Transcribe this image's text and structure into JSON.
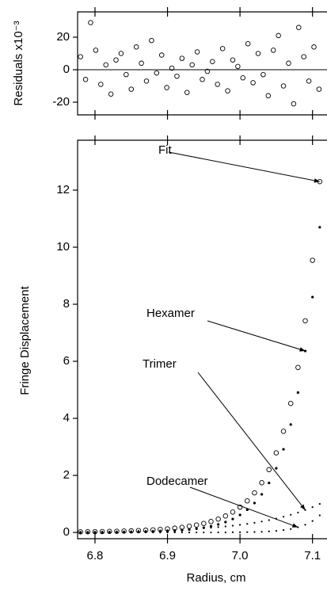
{
  "chart_data": [
    {
      "type": "scatter",
      "y_label": "Residuals x10⁻³",
      "xlim": [
        6.776,
        7.12
      ],
      "xticks": [
        6.8,
        6.9,
        7.0,
        7.1
      ],
      "ylim": [
        -27.8,
        35.6
      ],
      "yticks": [
        20,
        0,
        -20
      ],
      "reference_line": 0,
      "x": [
        6.78,
        6.787,
        6.794,
        6.801,
        6.808,
        6.815,
        6.822,
        6.829,
        6.836,
        6.843,
        6.85,
        6.857,
        6.864,
        6.871,
        6.878,
        6.885,
        6.892,
        6.899,
        6.906,
        6.913,
        6.92,
        6.927,
        6.934,
        6.941,
        6.948,
        6.955,
        6.962,
        6.969,
        6.976,
        6.983,
        6.99,
        6.997,
        7.004,
        7.011,
        7.018,
        7.025,
        7.032,
        7.039,
        7.046,
        7.053,
        7.06,
        7.067,
        7.074,
        7.081,
        7.088,
        7.095,
        7.102,
        7.109
      ],
      "series": [
        {
          "marker": "circle-open",
          "color": "#000000",
          "values": [
            8,
            -6,
            29,
            12,
            -9,
            3,
            -15,
            6,
            10,
            -3,
            -12,
            14,
            4,
            -7,
            18,
            -2,
            9,
            -11,
            1,
            -4,
            7,
            -14,
            3,
            11,
            -6,
            -1,
            5,
            -9,
            13,
            -13,
            6,
            2,
            -5,
            16,
            -8,
            10,
            -3,
            -16,
            12,
            21,
            -10,
            4,
            -21,
            26,
            8,
            -7,
            14,
            -12
          ]
        }
      ]
    },
    {
      "type": "scatter",
      "x_label": "Radius, cm",
      "y_label": "Fringe Displacement",
      "xlim": [
        6.776,
        7.12
      ],
      "xticks": [
        {
          "value": 6.8,
          "label": "6.8"
        },
        {
          "value": 6.9,
          "label": "6.9"
        },
        {
          "value": 7.0,
          "label": "7.0"
        },
        {
          "value": 7.1,
          "label": "7.1"
        }
      ],
      "ylim": [
        -0.22,
        13.75
      ],
      "yticks": [
        0,
        2,
        4,
        6,
        8,
        10,
        12
      ],
      "x": [
        6.78,
        6.79,
        6.8,
        6.81,
        6.82,
        6.83,
        6.84,
        6.85,
        6.86,
        6.87,
        6.88,
        6.89,
        6.9,
        6.91,
        6.92,
        6.93,
        6.94,
        6.95,
        6.96,
        6.97,
        6.98,
        6.99,
        7.0,
        7.01,
        7.02,
        7.03,
        7.04,
        7.05,
        7.06,
        7.07,
        7.08,
        7.09,
        7.1,
        7.11
      ],
      "series": [
        {
          "name": "Fit",
          "marker": "circle-open",
          "color": "#000000",
          "values": [
            0.021,
            0.024,
            0.027,
            0.031,
            0.037,
            0.042,
            0.049,
            0.056,
            0.066,
            0.077,
            0.09,
            0.106,
            0.125,
            0.15,
            0.179,
            0.214,
            0.26,
            0.315,
            0.383,
            0.469,
            0.577,
            0.714,
            0.887,
            1.107,
            1.387,
            1.744,
            2.202,
            2.79,
            3.546,
            4.522,
            5.784,
            7.418,
            9.54,
            12.3
          ]
        },
        {
          "name": "Hexamer",
          "marker": "dot",
          "color": "#000000",
          "values": [
            0.002,
            0.003,
            0.003,
            0.004,
            0.006,
            0.007,
            0.01,
            0.012,
            0.016,
            0.021,
            0.027,
            0.035,
            0.045,
            0.059,
            0.077,
            0.099,
            0.129,
            0.167,
            0.217,
            0.281,
            0.364,
            0.472,
            0.613,
            0.795,
            1.031,
            1.337,
            1.734,
            2.249,
            2.916,
            3.782,
            4.905,
            6.361,
            8.251,
            10.7
          ]
        },
        {
          "name": "Trimer",
          "marker": "dot-small",
          "color": "#000000",
          "values": [
            0.019,
            0.021,
            0.024,
            0.027,
            0.031,
            0.035,
            0.039,
            0.044,
            0.05,
            0.056,
            0.063,
            0.071,
            0.08,
            0.091,
            0.102,
            0.115,
            0.13,
            0.147,
            0.165,
            0.186,
            0.21,
            0.237,
            0.267,
            0.301,
            0.34,
            0.383,
            0.432,
            0.487,
            0.549,
            0.619,
            0.698,
            0.787,
            0.887,
            1.0
          ]
        },
        {
          "name": "Dodecamer",
          "marker": "dot-small",
          "color": "#000000",
          "values": [
            0,
            0,
            0,
            0,
            0,
            0,
            0,
            0,
            0,
            0,
            0,
            0,
            0,
            0,
            0,
            0,
            0.001,
            0.001,
            0.001,
            0.002,
            0.003,
            0.005,
            0.007,
            0.011,
            0.016,
            0.024,
            0.036,
            0.054,
            0.081,
            0.121,
            0.181,
            0.27,
            0.402,
            0.6
          ]
        }
      ]
    }
  ]
}
